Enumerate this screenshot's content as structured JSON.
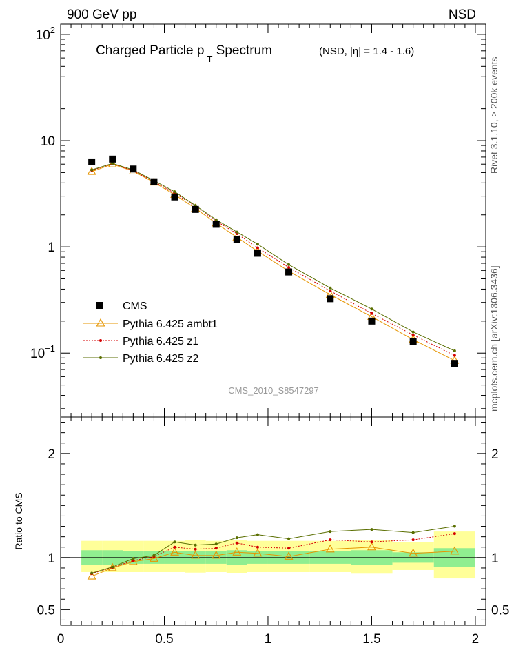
{
  "header": {
    "left": "900 GeV pp",
    "right": "NSD"
  },
  "title": {
    "main": "Charged Particle p",
    "sub": "T",
    "main2": " Spectrum",
    "note": "(NSD, |η| = 1.4 - 1.6)"
  },
  "side_labels": {
    "rivet": "Rivet 3.1.10, ≥ 200k events",
    "mcplots": "mcplots.cern.ch [arXiv:1306.3436]"
  },
  "watermark": "CMS_2010_S8547297",
  "colors": {
    "cms": "#000000",
    "ambt1": "#e69500",
    "z1": "#d40000",
    "z2": "#5a6e00",
    "band_inner": "#90ee90",
    "band_outer": "#ffff99"
  },
  "chart_data": {
    "type": "line",
    "main": {
      "yscale": "log",
      "xlim": [
        0,
        2.05
      ],
      "ylim": [
        0.025,
        125
      ],
      "ytick_labels": [
        {
          "value": 0.1,
          "base": "10",
          "exp": "−1"
        },
        {
          "value": 1,
          "text": "1"
        },
        {
          "value": 10,
          "text": "10"
        },
        {
          "value": 100,
          "base": "10",
          "exp": "2"
        }
      ],
      "legend": {
        "placement": "bottom-left",
        "entries": [
          "CMS",
          "Pythia 6.425 ambt1",
          "Pythia 6.425 z1",
          "Pythia 6.425 z2"
        ]
      },
      "cms": {
        "name": "CMS",
        "x": [
          0.15,
          0.25,
          0.35,
          0.45,
          0.55,
          0.65,
          0.75,
          0.85,
          0.95,
          1.1,
          1.3,
          1.5,
          1.7,
          1.9
        ],
        "y": [
          6.3,
          6.7,
          5.4,
          4.1,
          2.95,
          2.25,
          1.63,
          1.17,
          0.87,
          0.58,
          0.325,
          0.2,
          0.128,
          0.08
        ]
      },
      "series": [
        {
          "name": "Pythia 6.425 ambt1",
          "x": [
            0.15,
            0.25,
            0.35,
            0.45,
            0.55,
            0.65,
            0.75,
            0.85,
            0.95,
            1.1,
            1.3,
            1.5,
            1.7,
            1.9
          ],
          "y": [
            5.1,
            6.0,
            5.15,
            4.05,
            3.1,
            2.3,
            1.67,
            1.23,
            0.91,
            0.59,
            0.355,
            0.22,
            0.134,
            0.085
          ]
        },
        {
          "name": "Pythia 6.425 z1",
          "x": [
            0.15,
            0.25,
            0.35,
            0.45,
            0.55,
            0.65,
            0.75,
            0.85,
            0.95,
            1.1,
            1.3,
            1.5,
            1.7,
            1.9
          ],
          "y": [
            5.25,
            6.05,
            5.2,
            4.12,
            3.2,
            2.4,
            1.75,
            1.33,
            0.98,
            0.64,
            0.385,
            0.236,
            0.148,
            0.095
          ]
        },
        {
          "name": "Pythia 6.425 z2",
          "x": [
            0.15,
            0.25,
            0.35,
            0.45,
            0.55,
            0.65,
            0.75,
            0.85,
            0.95,
            1.1,
            1.3,
            1.5,
            1.7,
            1.9
          ],
          "y": [
            5.3,
            6.1,
            5.3,
            4.2,
            3.3,
            2.45,
            1.8,
            1.38,
            1.06,
            0.68,
            0.41,
            0.26,
            0.158,
            0.105
          ]
        }
      ]
    },
    "ratio": {
      "ylabel": "Ratio to CMS",
      "xlim": [
        0,
        2.05
      ],
      "ylim": [
        0.35,
        2.35
      ],
      "ytick_labels": [
        "0.5",
        "1",
        "2"
      ],
      "xtick_labels": [
        "0",
        "0.5",
        "1",
        "1.5",
        "2"
      ],
      "band_edges": [
        0.1,
        0.2,
        0.3,
        0.4,
        0.5,
        0.6,
        0.7,
        0.8,
        0.9,
        1.0,
        1.2,
        1.4,
        1.6,
        1.8,
        2.0
      ],
      "band_inner_lo": [
        0.93,
        0.93,
        0.94,
        0.94,
        0.94,
        0.94,
        0.94,
        0.93,
        0.94,
        0.94,
        0.94,
        0.93,
        0.95,
        0.91
      ],
      "band_inner_hi": [
        1.07,
        1.07,
        1.06,
        1.06,
        1.06,
        1.06,
        1.06,
        1.07,
        1.06,
        1.06,
        1.06,
        1.07,
        1.05,
        1.09
      ],
      "band_outer_lo": [
        0.86,
        0.86,
        0.86,
        0.86,
        0.86,
        0.855,
        0.86,
        0.85,
        0.86,
        0.86,
        0.86,
        0.845,
        0.88,
        0.8
      ],
      "band_outer_hi": [
        1.16,
        1.16,
        1.16,
        1.16,
        1.16,
        1.17,
        1.16,
        1.17,
        1.16,
        1.16,
        1.16,
        1.17,
        1.15,
        1.25
      ],
      "series": [
        {
          "name": "Pythia 6.425 ambt1",
          "x": [
            0.15,
            0.25,
            0.35,
            0.45,
            0.55,
            0.65,
            0.75,
            0.85,
            0.95,
            1.1,
            1.3,
            1.5,
            1.7,
            1.9
          ],
          "y": [
            0.82,
            0.9,
            0.96,
            0.99,
            1.05,
            1.02,
            1.02,
            1.05,
            1.04,
            1.01,
            1.08,
            1.1,
            1.04,
            1.06
          ]
        },
        {
          "name": "Pythia 6.425 z1",
          "x": [
            0.15,
            0.25,
            0.35,
            0.45,
            0.55,
            0.65,
            0.75,
            0.85,
            0.95,
            1.1,
            1.3,
            1.5,
            1.7,
            1.9
          ],
          "y": [
            0.845,
            0.905,
            0.97,
            1.01,
            1.1,
            1.08,
            1.09,
            1.14,
            1.1,
            1.09,
            1.17,
            1.15,
            1.17,
            1.23
          ]
        },
        {
          "name": "Pythia 6.425 z2",
          "x": [
            0.15,
            0.25,
            0.35,
            0.45,
            0.55,
            0.65,
            0.75,
            0.85,
            0.95,
            1.1,
            1.3,
            1.5,
            1.7,
            1.9
          ],
          "y": [
            0.85,
            0.91,
            0.99,
            1.02,
            1.15,
            1.12,
            1.13,
            1.19,
            1.22,
            1.18,
            1.25,
            1.27,
            1.24,
            1.3
          ]
        }
      ]
    }
  }
}
